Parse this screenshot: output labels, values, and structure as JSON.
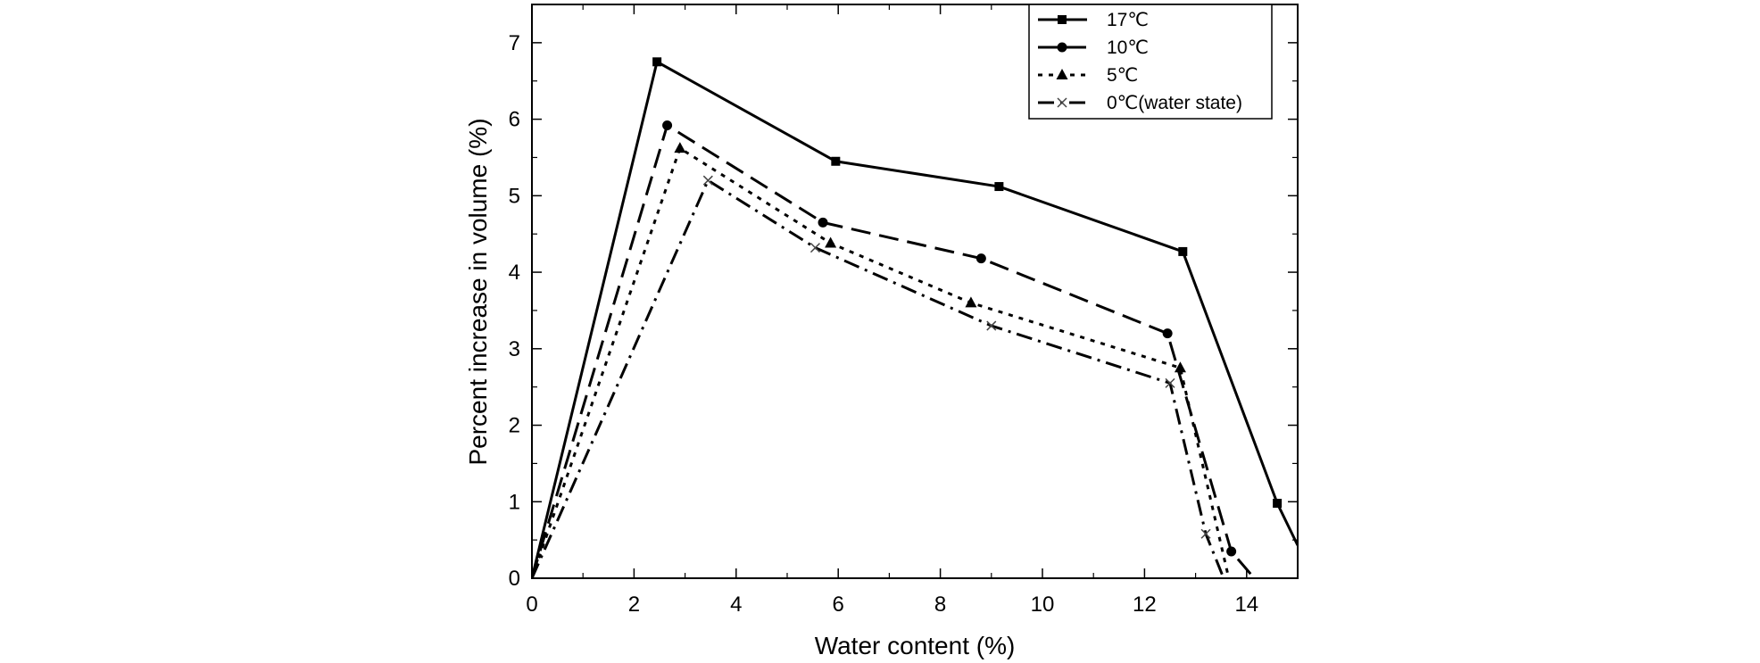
{
  "chart_data": {
    "type": "line",
    "title": "",
    "xlabel": "Water content (%)",
    "ylabel": "Percent increase in volume (%)",
    "xlim": [
      0,
      15
    ],
    "ylim": [
      0,
      7.5
    ],
    "xticks": [
      0,
      2,
      4,
      6,
      8,
      10,
      12,
      14
    ],
    "yticks": [
      0,
      1,
      2,
      3,
      4,
      5,
      6,
      7
    ],
    "grid": false,
    "legend_position": "top-right",
    "series": [
      {
        "name": "17℃",
        "marker": "square",
        "line_style": "solid",
        "x": [
          0,
          2.45,
          5.95,
          9.15,
          12.75,
          14.6,
          15.0
        ],
        "y": [
          0,
          6.75,
          5.45,
          5.12,
          4.27,
          0.98,
          0.43
        ],
        "marker_mask": [
          false,
          true,
          true,
          true,
          true,
          true,
          false
        ]
      },
      {
        "name": "10℃",
        "marker": "circle",
        "line_style": "dashed",
        "x": [
          0,
          2.65,
          5.7,
          8.8,
          12.45,
          13.7,
          14.15
        ],
        "y": [
          0,
          5.92,
          4.65,
          4.18,
          3.2,
          0.35,
          0.0
        ],
        "marker_mask": [
          false,
          true,
          true,
          true,
          true,
          true,
          false
        ]
      },
      {
        "name": "5℃",
        "marker": "triangle",
        "line_style": "dotted",
        "x": [
          0,
          2.9,
          5.85,
          8.6,
          12.7,
          13.65
        ],
        "y": [
          0,
          5.62,
          4.38,
          3.6,
          2.75,
          0.0
        ],
        "marker_mask": [
          false,
          true,
          true,
          true,
          true,
          false
        ]
      },
      {
        "name": "0℃(water state)",
        "marker": "x",
        "line_style": "dashdot",
        "x": [
          0,
          3.45,
          5.55,
          9.0,
          12.5,
          13.2,
          13.55
        ],
        "y": [
          0,
          5.2,
          4.32,
          3.3,
          2.55,
          0.58,
          0.0
        ],
        "marker_mask": [
          false,
          true,
          true,
          true,
          true,
          true,
          false
        ]
      }
    ]
  }
}
